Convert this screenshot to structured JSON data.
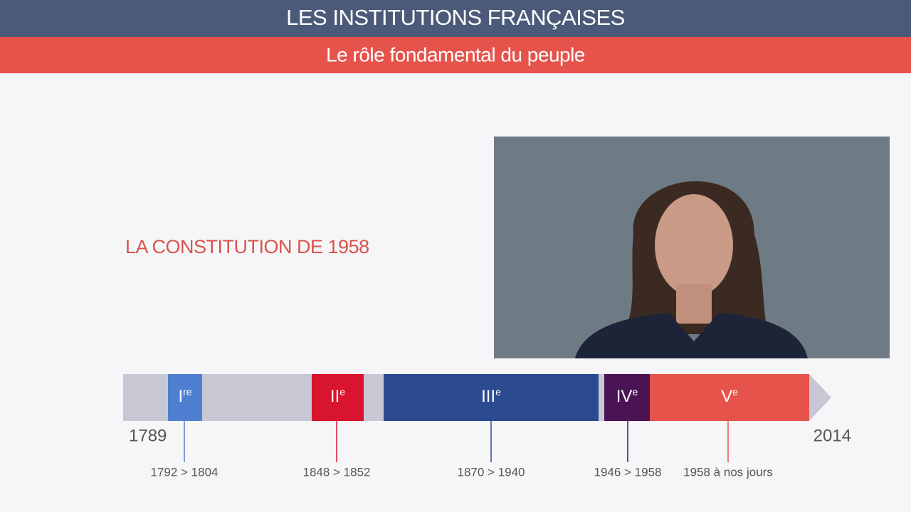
{
  "header": {
    "title": "LES INSTITUTIONS FRANÇAISES",
    "subtitle": "Le rôle fondamental du peuple"
  },
  "section_title": "LA CONSTITUTION DE 1958",
  "timeline": {
    "start": "1789",
    "end": "2014",
    "periods": [
      {
        "numeral": "I",
        "suffix": "re",
        "dates": "1792 > 1804"
      },
      {
        "numeral": "II",
        "suffix": "e",
        "dates": "1848 > 1852"
      },
      {
        "numeral": "III",
        "suffix": "e",
        "dates": "1870 > 1940"
      },
      {
        "numeral": "IV",
        "suffix": "e",
        "dates": "1946 > 1958"
      },
      {
        "numeral": "V",
        "suffix": "e",
        "dates": "1958 à nos jours"
      }
    ]
  }
}
